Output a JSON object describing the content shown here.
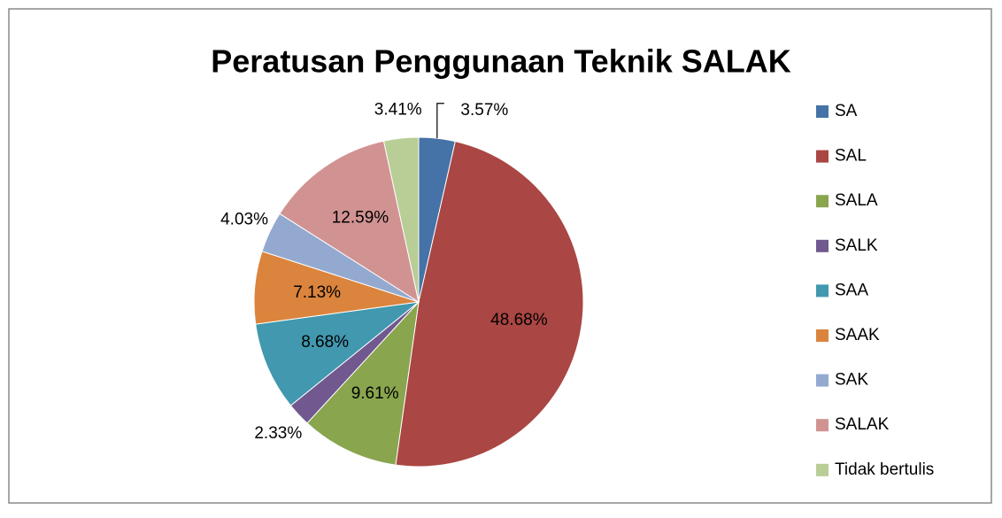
{
  "chart_data": {
    "type": "pie",
    "title": "Peratusan Penggunaan Teknik SALAK",
    "categories": [
      "SA",
      "SAL",
      "SALA",
      "SALK",
      "SAA",
      "SAAK",
      "SAK",
      "SALAK",
      "Tidak bertulis"
    ],
    "values": [
      3.57,
      48.68,
      9.61,
      2.33,
      8.68,
      7.13,
      4.03,
      12.59,
      3.41
    ],
    "value_labels": [
      "3.57%",
      "48.68%",
      "9.61%",
      "2.33%",
      "8.68%",
      "7.13%",
      "4.03%",
      "12.59%",
      "3.41%"
    ],
    "colors": [
      "#4572a7",
      "#aa4643",
      "#89a54e",
      "#71588f",
      "#4198af",
      "#db843d",
      "#93a9cf",
      "#d19392",
      "#b9cd96"
    ],
    "legend": "right"
  }
}
